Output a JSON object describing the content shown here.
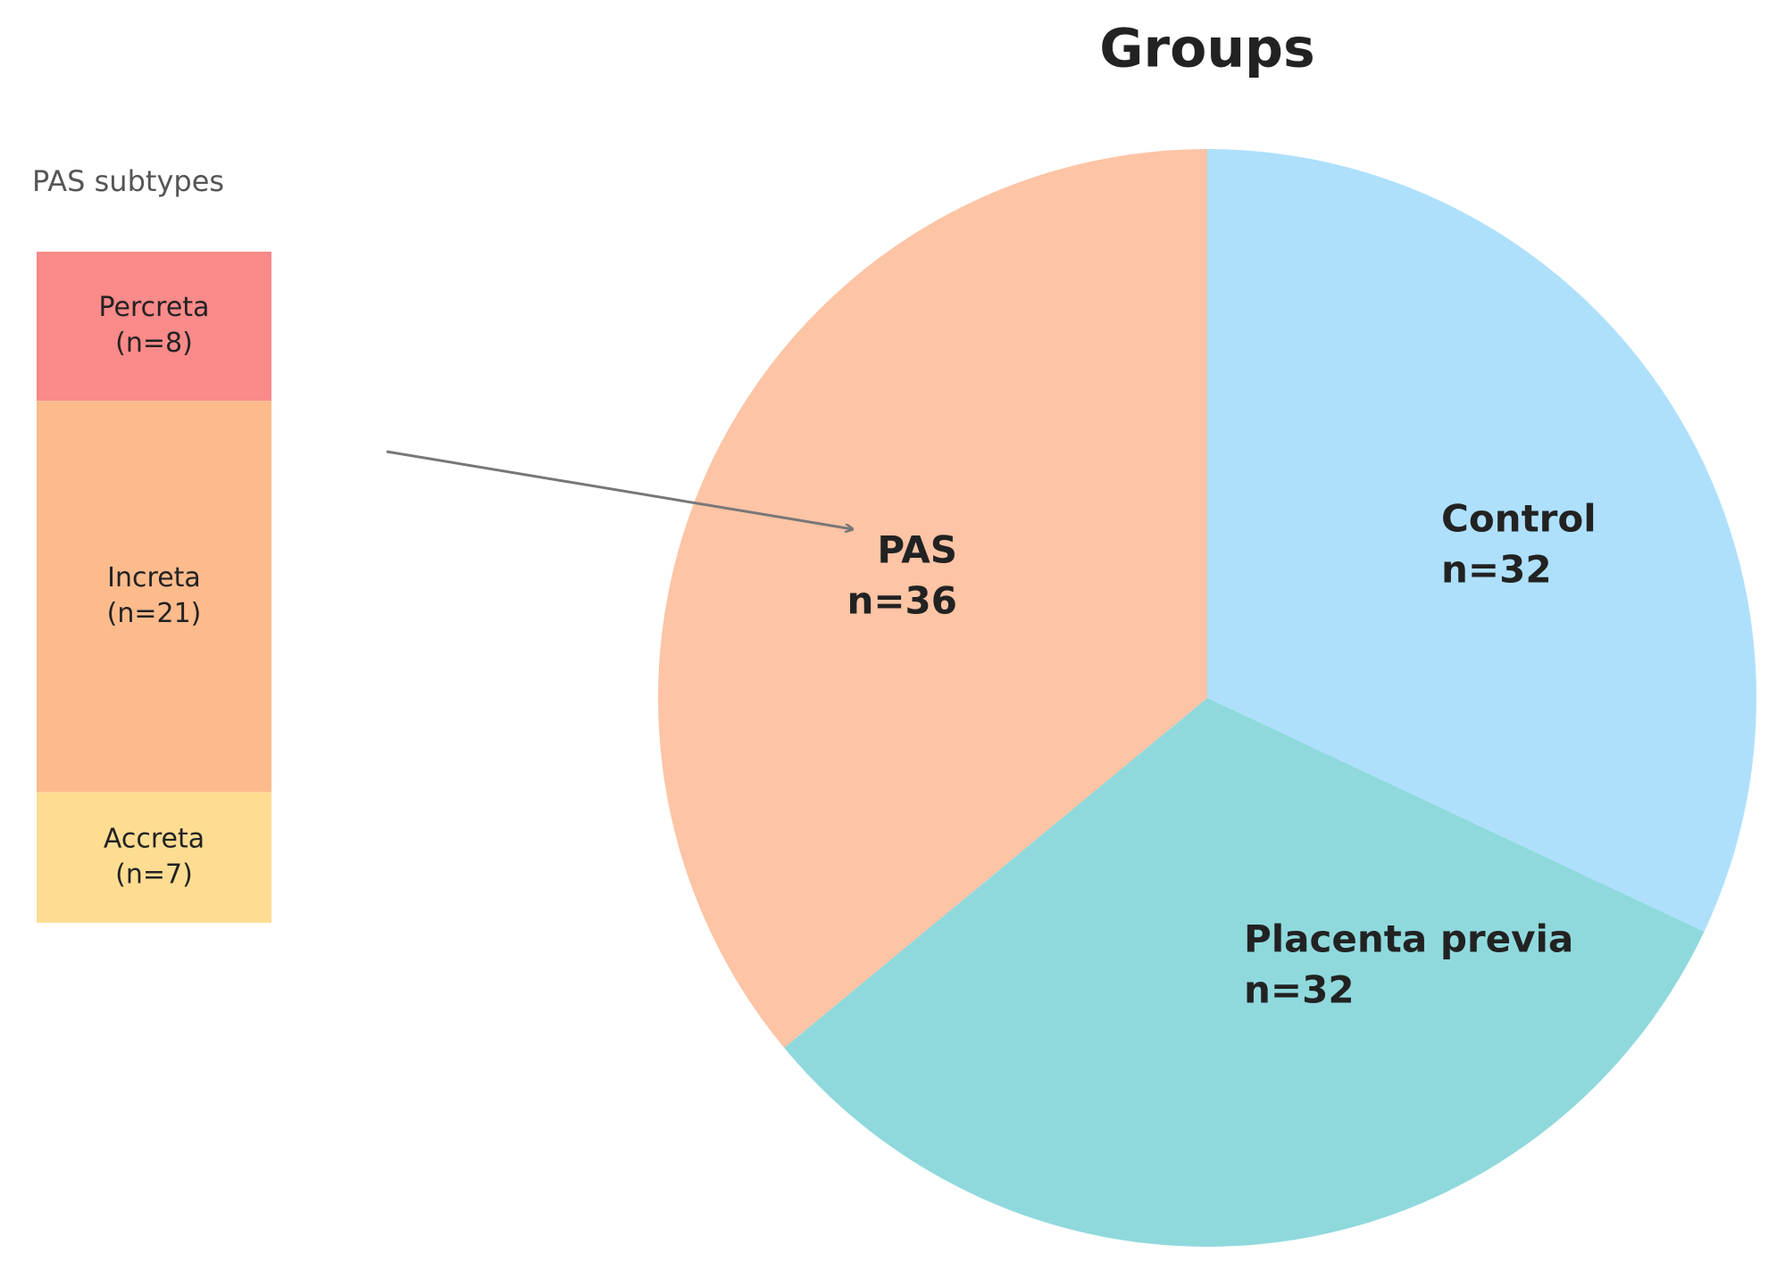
{
  "chart_data": [
    {
      "type": "stacked-bar",
      "title": "PAS subtypes",
      "categories": [
        "Percreta",
        "Increta",
        "Accreta"
      ],
      "values": [
        8,
        21,
        7
      ],
      "value_labels": [
        "(n=8)",
        "(n=21)",
        "(n=7)"
      ],
      "colors": [
        "#fb8a8a",
        "#fdbb8c",
        "#fedd93"
      ]
    },
    {
      "type": "pie",
      "title": "Groups",
      "categories": [
        "Control",
        "Placenta previa",
        "PAS"
      ],
      "values": [
        32,
        32,
        36
      ],
      "value_labels": [
        "n=32",
        "n=32",
        "n=36"
      ],
      "colors": [
        "#aee0fc",
        "#8fd9dd",
        "#fdc4a5"
      ]
    }
  ]
}
